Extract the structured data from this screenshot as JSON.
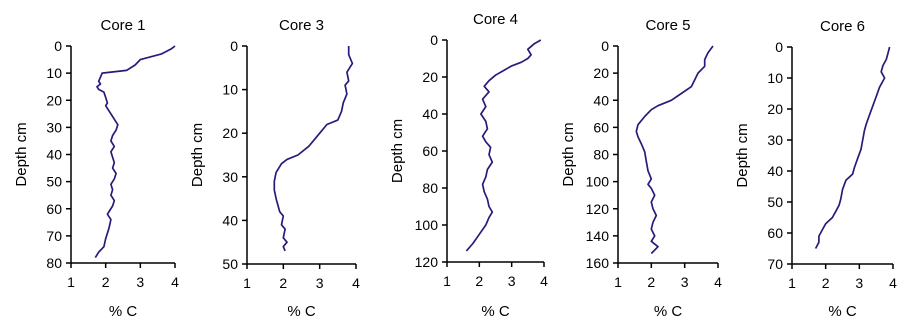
{
  "chart_data": [
    {
      "type": "line",
      "title": "Core 1",
      "xlabel": "% C",
      "ylabel": "Depth cm",
      "xlim": [
        1,
        4
      ],
      "ylim": [
        0,
        80
      ],
      "y_inverted": true,
      "x_ticks": [
        1,
        2,
        3,
        4
      ],
      "y_ticks": [
        0,
        10,
        20,
        30,
        40,
        50,
        60,
        70,
        80
      ],
      "x": [
        4.0,
        3.9,
        3.6,
        3.0,
        2.85,
        2.6,
        1.9,
        1.8,
        1.85,
        1.75,
        1.8,
        1.95,
        2.0,
        2.05,
        2.0,
        2.1,
        2.2,
        2.25,
        2.35,
        2.3,
        2.2,
        2.15,
        2.25,
        2.15,
        2.2,
        2.25,
        2.2,
        2.3,
        2.25,
        2.15,
        2.2,
        2.15,
        2.25,
        2.2,
        2.1,
        2.05,
        2.15,
        2.1,
        2.0,
        1.95,
        1.8,
        1.7
      ],
      "y": [
        0,
        1,
        3,
        5,
        7,
        9,
        10,
        13,
        14,
        15,
        16,
        17,
        19,
        21,
        22,
        24,
        26,
        27,
        29,
        31,
        33,
        35,
        37,
        39,
        41,
        43,
        45,
        47,
        49,
        51,
        53,
        55,
        57,
        59,
        61,
        62,
        64,
        67,
        71,
        74,
        76,
        78
      ],
      "color": "#2a1a7a"
    },
    {
      "type": "line",
      "title": "Core 3",
      "xlabel": "% C",
      "ylabel": "Depth cm",
      "xlim": [
        1,
        4
      ],
      "ylim": [
        0,
        50
      ],
      "y_inverted": true,
      "x_ticks": [
        1,
        2,
        3,
        4
      ],
      "y_ticks": [
        0,
        10,
        20,
        30,
        40,
        50
      ],
      "x": [
        3.8,
        3.8,
        3.9,
        3.75,
        3.8,
        3.7,
        3.75,
        3.65,
        3.6,
        3.5,
        3.2,
        3.0,
        2.7,
        2.4,
        2.1,
        1.95,
        1.8,
        1.75,
        1.75,
        1.8,
        1.9,
        2.0,
        1.95,
        2.05,
        2.0,
        2.1,
        2.0,
        2.05
      ],
      "y": [
        0,
        2,
        4,
        6,
        8,
        9,
        11,
        13,
        15,
        17,
        18,
        20,
        23,
        25,
        26,
        27,
        29,
        31,
        33,
        35,
        38,
        39,
        41,
        42,
        44,
        45,
        46,
        47
      ],
      "color": "#2a1a7a"
    },
    {
      "type": "line",
      "title": "Core 4",
      "xlabel": "% C",
      "ylabel": "Depth cm",
      "xlim": [
        1,
        4
      ],
      "ylim": [
        0,
        120
      ],
      "y_inverted": true,
      "x_ticks": [
        1,
        2,
        3,
        4
      ],
      "y_ticks": [
        0,
        20,
        40,
        60,
        80,
        100,
        120
      ],
      "x": [
        3.9,
        3.7,
        3.5,
        3.6,
        3.5,
        3.3,
        3.0,
        2.8,
        2.5,
        2.3,
        2.15,
        2.3,
        2.1,
        2.2,
        2.05,
        2.2,
        2.25,
        2.1,
        2.2,
        2.35,
        2.3,
        2.4,
        2.25,
        2.2,
        2.1,
        2.15,
        2.25,
        2.3,
        2.4,
        2.3,
        2.2,
        2.0,
        1.8,
        1.6
      ],
      "y": [
        0,
        2,
        5,
        8,
        10,
        12,
        14,
        16,
        19,
        22,
        25,
        28,
        32,
        36,
        40,
        44,
        48,
        52,
        55,
        58,
        62,
        66,
        70,
        74,
        78,
        82,
        86,
        90,
        93,
        96,
        100,
        105,
        110,
        114
      ],
      "color": "#2a1a7a"
    },
    {
      "type": "line",
      "title": "Core 5",
      "xlabel": "% C",
      "ylabel": "Depth cm",
      "xlim": [
        1,
        4
      ],
      "ylim": [
        0,
        160
      ],
      "y_inverted": true,
      "x_ticks": [
        1,
        2,
        3,
        4
      ],
      "y_ticks": [
        0,
        20,
        40,
        60,
        80,
        100,
        120,
        140,
        160
      ],
      "x": [
        3.85,
        3.7,
        3.6,
        3.6,
        3.4,
        3.3,
        3.2,
        2.9,
        2.6,
        2.2,
        2.0,
        1.8,
        1.6,
        1.55,
        1.6,
        1.7,
        1.8,
        1.85,
        1.9,
        2.0,
        1.9,
        2.0,
        2.1,
        2.0,
        2.05,
        2.15,
        2.05,
        2.0,
        2.1,
        2.0,
        2.2,
        2.0
      ],
      "y": [
        0,
        5,
        10,
        15,
        20,
        25,
        30,
        35,
        40,
        44,
        47,
        52,
        58,
        63,
        67,
        72,
        78,
        85,
        92,
        98,
        102,
        105,
        110,
        115,
        120,
        125,
        130,
        135,
        140,
        144,
        148,
        153
      ],
      "color": "#2a1a7a"
    },
    {
      "type": "line",
      "title": "Core 6",
      "xlabel": "% C",
      "ylabel": "Depth cm",
      "xlim": [
        1,
        4
      ],
      "ylim": [
        0,
        70
      ],
      "y_inverted": true,
      "x_ticks": [
        1,
        2,
        3,
        4
      ],
      "y_ticks": [
        0,
        10,
        20,
        30,
        40,
        50,
        60,
        70
      ],
      "x": [
        3.9,
        3.85,
        3.8,
        3.7,
        3.65,
        3.75,
        3.6,
        3.5,
        3.4,
        3.3,
        3.2,
        3.15,
        3.1,
        3.05,
        2.95,
        2.85,
        2.8,
        2.6,
        2.5,
        2.45,
        2.4,
        2.3,
        2.2,
        2.0,
        1.9,
        1.8,
        1.8,
        1.7
      ],
      "y": [
        0,
        2,
        4,
        6,
        8,
        10,
        13,
        16,
        19,
        22,
        25,
        27,
        30,
        33,
        36,
        39,
        41,
        43,
        46,
        49,
        51,
        53,
        55,
        57,
        59,
        61,
        63,
        65
      ],
      "color": "#2a1a7a"
    }
  ]
}
